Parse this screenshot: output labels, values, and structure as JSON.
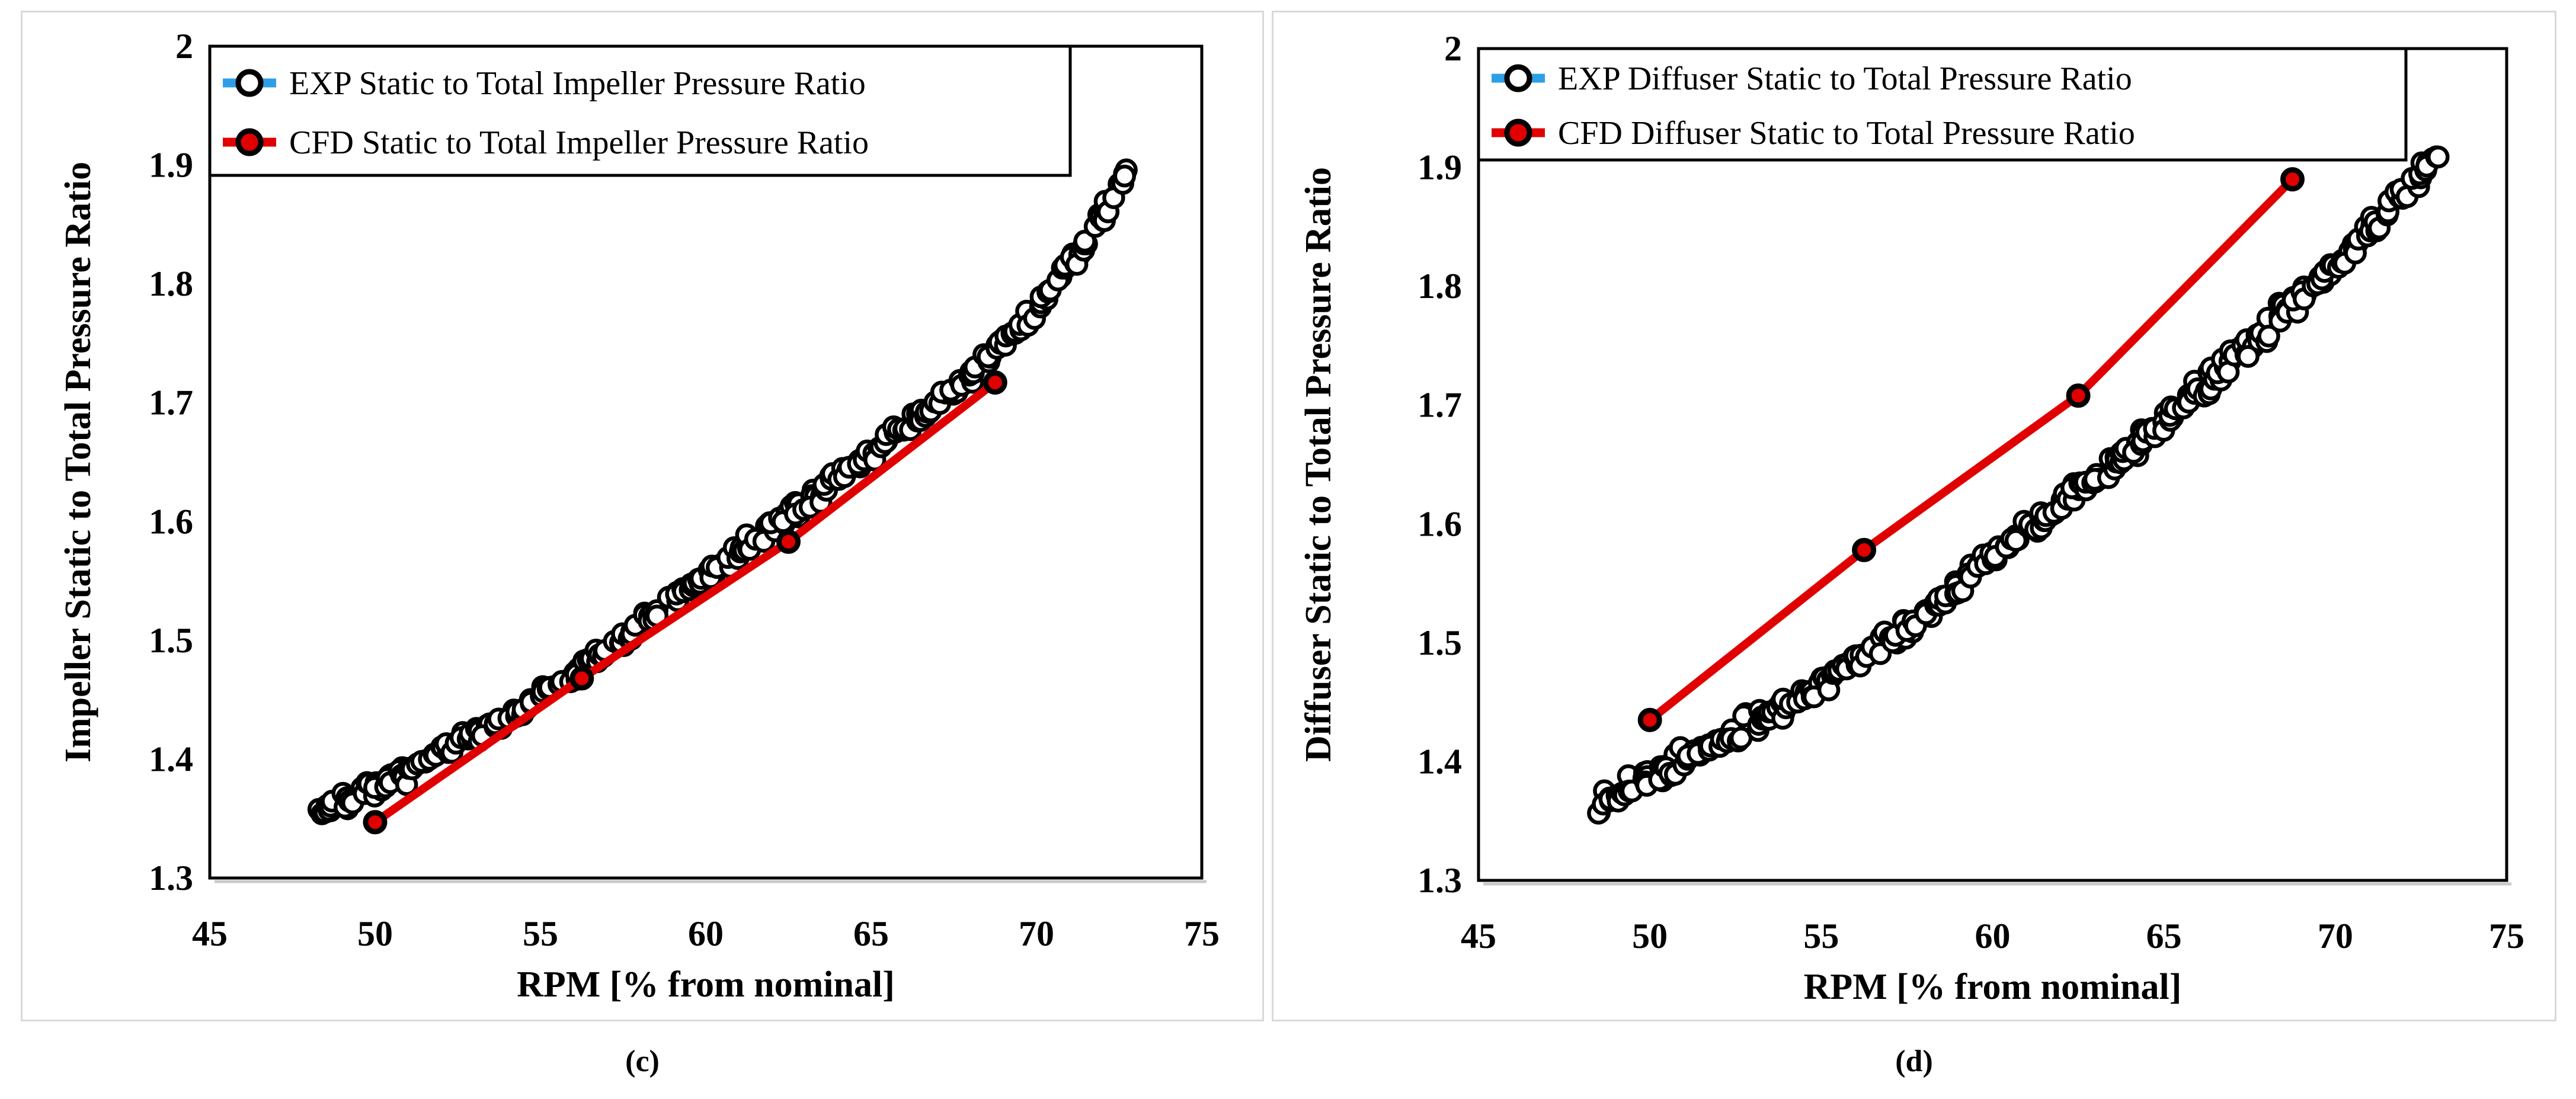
{
  "figure": {
    "background": "#ffffff",
    "panel_border_color": "#d9d9d9",
    "axis_color": "#000000",
    "axis_shadow_color": "#c9c9c9"
  },
  "chart_data": [
    {
      "id": "c",
      "type": "scatter-line",
      "caption": "(c)",
      "xlabel": "RPM [% from nominal]",
      "ylabel": "Impeller Static to Total Pressure Ratio",
      "xlim": [
        45,
        75
      ],
      "ylim": [
        1.3,
        2
      ],
      "x_ticks": [
        45,
        50,
        55,
        60,
        65,
        70,
        75
      ],
      "y_ticks": [
        "1.3",
        "1.4",
        "1.5",
        "1.6",
        "1.7",
        "1.8",
        "1.9",
        "2"
      ],
      "grid": false,
      "legend_position": "top-left",
      "series": [
        {
          "name": "EXP Static to Total Impeller Pressure Ratio",
          "type": "scatter",
          "marker": "open-circle",
          "marker_edge_color": "#000000",
          "marker_fill": "#ffffff",
          "legend_line_color": "#2e9fe6",
          "n_points": 300,
          "scatter_band": 0.0075,
          "x_range": [
            48.3,
            72.8
          ],
          "trend": [
            [
              48.3,
              1.356
            ],
            [
              50,
              1.374
            ],
            [
              52,
              1.404
            ],
            [
              54,
              1.436
            ],
            [
              56,
              1.471
            ],
            [
              58,
              1.511
            ],
            [
              60,
              1.554
            ],
            [
              62,
              1.596
            ],
            [
              64,
              1.636
            ],
            [
              66,
              1.677
            ],
            [
              68,
              1.722
            ],
            [
              70,
              1.778
            ],
            [
              71.5,
              1.836
            ],
            [
              72.8,
              1.897
            ]
          ]
        },
        {
          "name": "CFD Static to Total Impeller Pressure Ratio",
          "type": "line",
          "color": "#e00000",
          "marker": "filled-circle",
          "marker_fill": "#e00000",
          "marker_edge_color": "#000000",
          "points": [
            [
              50,
              1.347
            ],
            [
              56.25,
              1.468
            ],
            [
              62.5,
              1.583
            ],
            [
              68.75,
              1.717
            ]
          ]
        }
      ]
    },
    {
      "id": "d",
      "type": "scatter-line",
      "caption": "(d)",
      "xlabel": "RPM [% from nominal]",
      "ylabel": "Diffuser Static to Total Pressure Ratio",
      "xlim": [
        45,
        75
      ],
      "ylim": [
        1.3,
        2
      ],
      "x_ticks": [
        45,
        50,
        55,
        60,
        65,
        70,
        75
      ],
      "y_ticks": [
        "1.3",
        "1.4",
        "1.5",
        "1.6",
        "1.7",
        "1.8",
        "1.9",
        "2"
      ],
      "grid": false,
      "legend_position": "top-left",
      "series": [
        {
          "name": "EXP Diffuser Static to Total Pressure Ratio",
          "type": "scatter",
          "marker": "open-circle",
          "marker_edge_color": "#000000",
          "marker_fill": "#ffffff",
          "legend_line_color": "#2e9fe6",
          "n_points": 330,
          "scatter_band": 0.009,
          "x_range": [
            48.5,
            73.0
          ],
          "trend": [
            [
              48.5,
              1.366
            ],
            [
              50,
              1.386
            ],
            [
              52,
              1.416
            ],
            [
              54,
              1.448
            ],
            [
              56,
              1.484
            ],
            [
              58,
              1.524
            ],
            [
              60,
              1.572
            ],
            [
              62,
              1.616
            ],
            [
              64,
              1.662
            ],
            [
              66,
              1.712
            ],
            [
              68,
              1.765
            ],
            [
              70,
              1.818
            ],
            [
              71.5,
              1.862
            ],
            [
              73,
              1.912
            ]
          ]
        },
        {
          "name": "CFD Diffuser Static to Total Pressure Ratio",
          "type": "line",
          "color": "#e00000",
          "marker": "filled-circle",
          "marker_fill": "#e00000",
          "marker_edge_color": "#000000",
          "points": [
            [
              50,
              1.435
            ],
            [
              56.25,
              1.578
            ],
            [
              62.5,
              1.708
            ],
            [
              68.75,
              1.89
            ]
          ]
        }
      ]
    }
  ]
}
